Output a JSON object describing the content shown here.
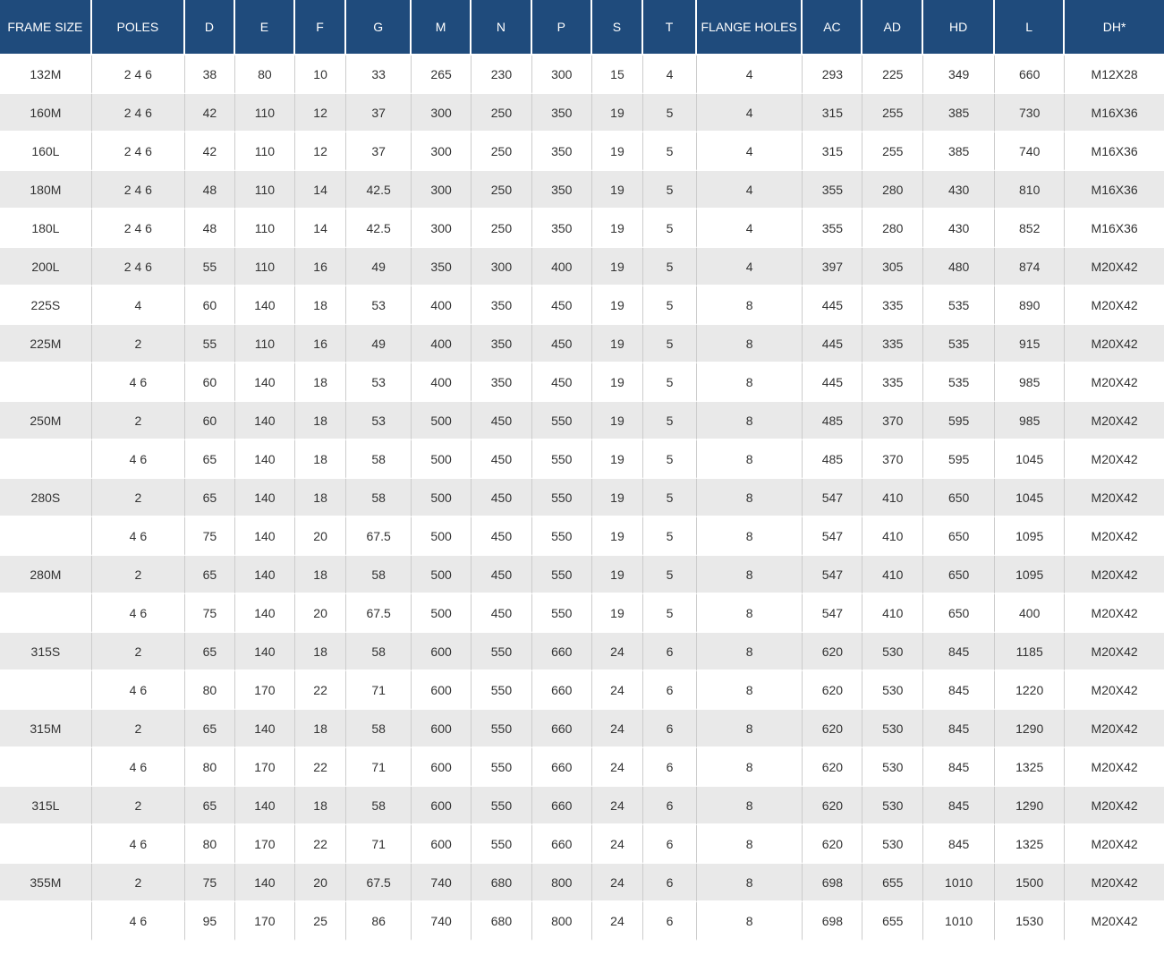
{
  "accent_colors": {
    "header_background": "#1f4b7c",
    "header_text": "#ffffff",
    "row_stripe": "#e9e9e9",
    "cell_border": "#cccccc",
    "body_text": "#333333"
  },
  "chart_data": {
    "type": "table",
    "title": "",
    "columns": [
      "FRAME SIZE",
      "POLES",
      "D",
      "E",
      "F",
      "G",
      "M",
      "N",
      "P",
      "S",
      "T",
      "FLANGE HOLES",
      "AC",
      "AD",
      "HD",
      "L",
      "DH*"
    ],
    "rows": [
      [
        "132M",
        "2 4 6",
        "38",
        "80",
        "10",
        "33",
        "265",
        "230",
        "300",
        "15",
        "4",
        "4",
        "293",
        "225",
        "349",
        "660",
        "M12X28"
      ],
      [
        "160M",
        "2 4 6",
        "42",
        "110",
        "12",
        "37",
        "300",
        "250",
        "350",
        "19",
        "5",
        "4",
        "315",
        "255",
        "385",
        "730",
        "M16X36"
      ],
      [
        "160L",
        "2 4 6",
        "42",
        "110",
        "12",
        "37",
        "300",
        "250",
        "350",
        "19",
        "5",
        "4",
        "315",
        "255",
        "385",
        "740",
        "M16X36"
      ],
      [
        "180M",
        "2 4 6",
        "48",
        "110",
        "14",
        "42.5",
        "300",
        "250",
        "350",
        "19",
        "5",
        "4",
        "355",
        "280",
        "430",
        "810",
        "M16X36"
      ],
      [
        "180L",
        "2 4 6",
        "48",
        "110",
        "14",
        "42.5",
        "300",
        "250",
        "350",
        "19",
        "5",
        "4",
        "355",
        "280",
        "430",
        "852",
        "M16X36"
      ],
      [
        "200L",
        "2 4 6",
        "55",
        "110",
        "16",
        "49",
        "350",
        "300",
        "400",
        "19",
        "5",
        "4",
        "397",
        "305",
        "480",
        "874",
        "M20X42"
      ],
      [
        "225S",
        "4",
        "60",
        "140",
        "18",
        "53",
        "400",
        "350",
        "450",
        "19",
        "5",
        "8",
        "445",
        "335",
        "535",
        "890",
        "M20X42"
      ],
      [
        "225M",
        "2",
        "55",
        "110",
        "16",
        "49",
        "400",
        "350",
        "450",
        "19",
        "5",
        "8",
        "445",
        "335",
        "535",
        "915",
        "M20X42"
      ],
      [
        "",
        "4 6",
        "60",
        "140",
        "18",
        "53",
        "400",
        "350",
        "450",
        "19",
        "5",
        "8",
        "445",
        "335",
        "535",
        "985",
        "M20X42"
      ],
      [
        "250M",
        "2",
        "60",
        "140",
        "18",
        "53",
        "500",
        "450",
        "550",
        "19",
        "5",
        "8",
        "485",
        "370",
        "595",
        "985",
        "M20X42"
      ],
      [
        "",
        "4 6",
        "65",
        "140",
        "18",
        "58",
        "500",
        "450",
        "550",
        "19",
        "5",
        "8",
        "485",
        "370",
        "595",
        "1045",
        "M20X42"
      ],
      [
        "280S",
        "2",
        "65",
        "140",
        "18",
        "58",
        "500",
        "450",
        "550",
        "19",
        "5",
        "8",
        "547",
        "410",
        "650",
        "1045",
        "M20X42"
      ],
      [
        "",
        "4 6",
        "75",
        "140",
        "20",
        "67.5",
        "500",
        "450",
        "550",
        "19",
        "5",
        "8",
        "547",
        "410",
        "650",
        "1095",
        "M20X42"
      ],
      [
        "280M",
        "2",
        "65",
        "140",
        "18",
        "58",
        "500",
        "450",
        "550",
        "19",
        "5",
        "8",
        "547",
        "410",
        "650",
        "1095",
        "M20X42"
      ],
      [
        "",
        "4 6",
        "75",
        "140",
        "20",
        "67.5",
        "500",
        "450",
        "550",
        "19",
        "5",
        "8",
        "547",
        "410",
        "650",
        "400",
        "M20X42"
      ],
      [
        "315S",
        "2",
        "65",
        "140",
        "18",
        "58",
        "600",
        "550",
        "660",
        "24",
        "6",
        "8",
        "620",
        "530",
        "845",
        "1185",
        "M20X42"
      ],
      [
        "",
        "4 6",
        "80",
        "170",
        "22",
        "71",
        "600",
        "550",
        "660",
        "24",
        "6",
        "8",
        "620",
        "530",
        "845",
        "1220",
        "M20X42"
      ],
      [
        "315M",
        "2",
        "65",
        "140",
        "18",
        "58",
        "600",
        "550",
        "660",
        "24",
        "6",
        "8",
        "620",
        "530",
        "845",
        "1290",
        "M20X42"
      ],
      [
        "",
        "4 6",
        "80",
        "170",
        "22",
        "71",
        "600",
        "550",
        "660",
        "24",
        "6",
        "8",
        "620",
        "530",
        "845",
        "1325",
        "M20X42"
      ],
      [
        "315L",
        "2",
        "65",
        "140",
        "18",
        "58",
        "600",
        "550",
        "660",
        "24",
        "6",
        "8",
        "620",
        "530",
        "845",
        "1290",
        "M20X42"
      ],
      [
        "",
        "4 6",
        "80",
        "170",
        "22",
        "71",
        "600",
        "550",
        "660",
        "24",
        "6",
        "8",
        "620",
        "530",
        "845",
        "1325",
        "M20X42"
      ],
      [
        "355M",
        "2",
        "75",
        "140",
        "20",
        "67.5",
        "740",
        "680",
        "800",
        "24",
        "6",
        "8",
        "698",
        "655",
        "1010",
        "1500",
        "M20X42"
      ],
      [
        "",
        "4 6",
        "95",
        "170",
        "25",
        "86",
        "740",
        "680",
        "800",
        "24",
        "6",
        "8",
        "698",
        "655",
        "1010",
        "1530",
        "M20X42"
      ]
    ]
  }
}
